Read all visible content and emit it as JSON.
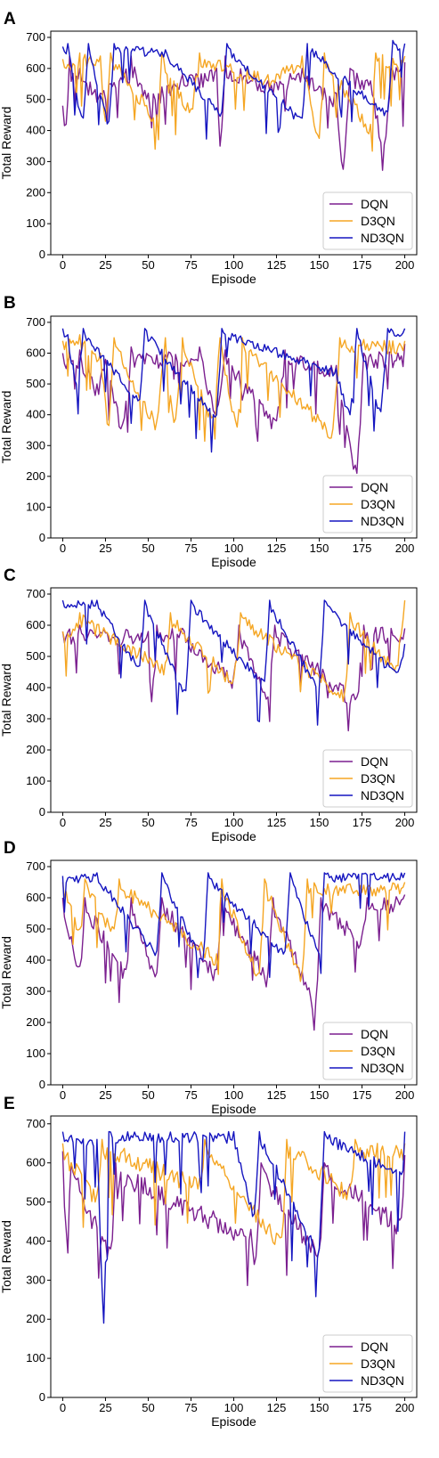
{
  "chart_data": [
    {
      "panel": "A",
      "type": "line",
      "xlabel": "Episode",
      "ylabel": "Total Reward",
      "xlim": [
        -7,
        207
      ],
      "ylim": [
        0,
        720
      ],
      "xticks": [
        0,
        25,
        50,
        75,
        100,
        125,
        150,
        175,
        200
      ],
      "yticks": [
        0,
        100,
        200,
        300,
        400,
        500,
        600,
        700
      ],
      "grid": false,
      "legend_position": "lower-right",
      "series": [
        {
          "name": "DQN",
          "color": "#7b1f8f",
          "keypoints": [
            [
              0,
              480
            ],
            [
              2,
              420
            ],
            [
              4,
              640
            ],
            [
              10,
              600
            ],
            [
              22,
              520
            ],
            [
              40,
              640
            ],
            [
              50,
              520
            ],
            [
              70,
              580
            ],
            [
              90,
              600
            ],
            [
              92,
              350
            ],
            [
              95,
              640
            ],
            [
              120,
              560
            ],
            [
              140,
              600
            ],
            [
              160,
              520
            ],
            [
              164,
              275
            ],
            [
              168,
              600
            ],
            [
              180,
              560
            ],
            [
              188,
              355
            ],
            [
              192,
              600
            ],
            [
              200,
              620
            ]
          ]
        },
        {
          "name": "D3QN",
          "color": "#f5a623",
          "keypoints": [
            [
              0,
              630
            ],
            [
              10,
              650
            ],
            [
              22,
              640
            ],
            [
              25,
              430
            ],
            [
              28,
              650
            ],
            [
              55,
              450
            ],
            [
              58,
              650
            ],
            [
              75,
              470
            ],
            [
              80,
              650
            ],
            [
              120,
              580
            ],
            [
              140,
              640
            ],
            [
              150,
              375
            ],
            [
              153,
              650
            ],
            [
              180,
              420
            ],
            [
              183,
              650
            ],
            [
              200,
              640
            ]
          ]
        },
        {
          "name": "ND3QN",
          "color": "#1515c0",
          "keypoints": [
            [
              0,
              670
            ],
            [
              3,
              680
            ],
            [
              8,
              520
            ],
            [
              12,
              440
            ],
            [
              15,
              680
            ],
            [
              23,
              500
            ],
            [
              27,
              430
            ],
            [
              30,
              680
            ],
            [
              60,
              660
            ],
            [
              93,
              460
            ],
            [
              96,
              680
            ],
            [
              140,
              440
            ],
            [
              143,
              680
            ],
            [
              190,
              460
            ],
            [
              193,
              690
            ],
            [
              200,
              680
            ]
          ]
        }
      ]
    },
    {
      "panel": "B",
      "type": "line",
      "xlabel": "Episode",
      "ylabel": "Total Reward",
      "xlim": [
        -7,
        207
      ],
      "ylim": [
        0,
        720
      ],
      "xticks": [
        0,
        25,
        50,
        75,
        100,
        125,
        150,
        175,
        200
      ],
      "yticks": [
        0,
        100,
        200,
        300,
        400,
        500,
        600,
        700
      ],
      "grid": false,
      "legend_position": "lower-right",
      "series": [
        {
          "name": "DQN",
          "color": "#7b1f8f",
          "keypoints": [
            [
              0,
              600
            ],
            [
              10,
              610
            ],
            [
              20,
              500
            ],
            [
              25,
              580
            ],
            [
              35,
              370
            ],
            [
              40,
              620
            ],
            [
              80,
              620
            ],
            [
              90,
              420
            ],
            [
              95,
              610
            ],
            [
              125,
              380
            ],
            [
              130,
              610
            ],
            [
              160,
              560
            ],
            [
              172,
              210
            ],
            [
              176,
              600
            ],
            [
              200,
              630
            ]
          ]
        },
        {
          "name": "D3QN",
          "color": "#f5a623",
          "keypoints": [
            [
              0,
              640
            ],
            [
              10,
              660
            ],
            [
              22,
              600
            ],
            [
              27,
              365
            ],
            [
              30,
              650
            ],
            [
              55,
              380
            ],
            [
              60,
              650
            ],
            [
              65,
              375
            ],
            [
              70,
              650
            ],
            [
              88,
              395
            ],
            [
              92,
              650
            ],
            [
              102,
              360
            ],
            [
              105,
              650
            ],
            [
              158,
              355
            ],
            [
              162,
              650
            ],
            [
              200,
              640
            ]
          ]
        },
        {
          "name": "ND3QN",
          "color": "#1515c0",
          "keypoints": [
            [
              0,
              680
            ],
            [
              3,
              660
            ],
            [
              8,
              500
            ],
            [
              12,
              680
            ],
            [
              45,
              450
            ],
            [
              48,
              680
            ],
            [
              90,
              400
            ],
            [
              93,
              680
            ],
            [
              160,
              550
            ],
            [
              168,
              400
            ],
            [
              172,
              680
            ],
            [
              186,
              410
            ],
            [
              190,
              680
            ],
            [
              200,
              680
            ]
          ]
        }
      ]
    },
    {
      "panel": "C",
      "type": "line",
      "xlabel": "Episode",
      "ylabel": "Total Reward",
      "xlim": [
        -7,
        207
      ],
      "ylim": [
        0,
        720
      ],
      "xticks": [
        0,
        25,
        50,
        75,
        100,
        125,
        150,
        175,
        200
      ],
      "yticks": [
        0,
        100,
        200,
        300,
        400,
        500,
        600,
        700
      ],
      "grid": false,
      "legend_position": "lower-right",
      "series": [
        {
          "name": "DQN",
          "color": "#7b1f8f",
          "keypoints": [
            [
              0,
              580
            ],
            [
              10,
              600
            ],
            [
              50,
              580
            ],
            [
              52,
              355
            ],
            [
              55,
              600
            ],
            [
              70,
              590
            ],
            [
              100,
              440
            ],
            [
              103,
              600
            ],
            [
              120,
              370
            ],
            [
              124,
              600
            ],
            [
              172,
              370
            ],
            [
              176,
              600
            ],
            [
              200,
              590
            ]
          ]
        },
        {
          "name": "D3QN",
          "color": "#f5a623",
          "keypoints": [
            [
              0,
              580
            ],
            [
              10,
              640
            ],
            [
              60,
              480
            ],
            [
              63,
              640
            ],
            [
              100,
              430
            ],
            [
              104,
              640
            ],
            [
              165,
              390
            ],
            [
              168,
              640
            ],
            [
              195,
              470
            ],
            [
              200,
              680
            ]
          ]
        },
        {
          "name": "ND3QN",
          "color": "#1515c0",
          "keypoints": [
            [
              0,
              680
            ],
            [
              20,
              680
            ],
            [
              45,
              470
            ],
            [
              48,
              680
            ],
            [
              72,
              390
            ],
            [
              75,
              680
            ],
            [
              118,
              420
            ],
            [
              121,
              680
            ],
            [
              150,
              400
            ],
            [
              153,
              680
            ],
            [
              196,
              450
            ],
            [
              200,
              540
            ]
          ]
        }
      ]
    },
    {
      "panel": "D",
      "type": "line",
      "xlabel": "Episode",
      "ylabel": "Total Reward",
      "xlim": [
        -7,
        207
      ],
      "ylim": [
        0,
        720
      ],
      "xticks": [
        0,
        25,
        50,
        75,
        100,
        125,
        150,
        175,
        200
      ],
      "yticks": [
        0,
        100,
        200,
        300,
        400,
        500,
        600,
        700
      ],
      "grid": false,
      "legend_position": "lower-right",
      "series": [
        {
          "name": "DQN",
          "color": "#7b1f8f",
          "keypoints": [
            [
              0,
              600
            ],
            [
              10,
              380
            ],
            [
              13,
              600
            ],
            [
              37,
              370
            ],
            [
              40,
              600
            ],
            [
              55,
              360
            ],
            [
              58,
              600
            ],
            [
              90,
              370
            ],
            [
              93,
              600
            ],
            [
              120,
              360
            ],
            [
              123,
              600
            ],
            [
              148,
              270
            ],
            [
              151,
              600
            ],
            [
              175,
              480
            ],
            [
              178,
              600
            ],
            [
              200,
              610
            ]
          ]
        },
        {
          "name": "D3QN",
          "color": "#f5a623",
          "keypoints": [
            [
              0,
              650
            ],
            [
              10,
              500
            ],
            [
              13,
              660
            ],
            [
              30,
              500
            ],
            [
              33,
              660
            ],
            [
              90,
              420
            ],
            [
              93,
              660
            ],
            [
              115,
              360
            ],
            [
              118,
              660
            ],
            [
              140,
              360
            ],
            [
              143,
              660
            ],
            [
              200,
              650
            ]
          ]
        },
        {
          "name": "ND3QN",
          "color": "#1515c0",
          "keypoints": [
            [
              0,
              670
            ],
            [
              20,
              680
            ],
            [
              55,
              430
            ],
            [
              58,
              680
            ],
            [
              82,
              400
            ],
            [
              85,
              680
            ],
            [
              130,
              430
            ],
            [
              133,
              680
            ],
            [
              150,
              420
            ],
            [
              153,
              680
            ],
            [
              200,
              680
            ]
          ]
        }
      ]
    },
    {
      "panel": "E",
      "type": "line",
      "xlabel": "Episode",
      "ylabel": "Total Reward",
      "xlim": [
        -7,
        207
      ],
      "ylim": [
        0,
        720
      ],
      "xticks": [
        0,
        25,
        50,
        75,
        100,
        125,
        150,
        175,
        200
      ],
      "yticks": [
        0,
        100,
        200,
        300,
        400,
        500,
        600,
        700
      ],
      "grid": false,
      "legend_position": "lower-right",
      "series": [
        {
          "name": "DQN",
          "color": "#7b1f8f",
          "keypoints": [
            [
              0,
              630
            ],
            [
              2,
              430
            ],
            [
              5,
              600
            ],
            [
              28,
              380
            ],
            [
              31,
              600
            ],
            [
              110,
              430
            ],
            [
              113,
              360
            ],
            [
              116,
              600
            ],
            [
              150,
              380
            ],
            [
              153,
              600
            ],
            [
              198,
              460
            ],
            [
              200,
              620
            ]
          ]
        },
        {
          "name": "D3QN",
          "color": "#f5a623",
          "keypoints": [
            [
              0,
              650
            ],
            [
              20,
              520
            ],
            [
              23,
              660
            ],
            [
              80,
              560
            ],
            [
              83,
              660
            ],
            [
              128,
              410
            ],
            [
              131,
              660
            ],
            [
              168,
              540
            ],
            [
              171,
              660
            ],
            [
              200,
              650
            ]
          ]
        },
        {
          "name": "ND3QN",
          "color": "#1515c0",
          "keypoints": [
            [
              0,
              680
            ],
            [
              20,
              660
            ],
            [
              24,
              190
            ],
            [
              27,
              680
            ],
            [
              100,
              680
            ],
            [
              112,
              470
            ],
            [
              115,
              680
            ],
            [
              150,
              380
            ],
            [
              153,
              680
            ],
            [
              199,
              580
            ],
            [
              200,
              680
            ]
          ]
        }
      ]
    }
  ]
}
